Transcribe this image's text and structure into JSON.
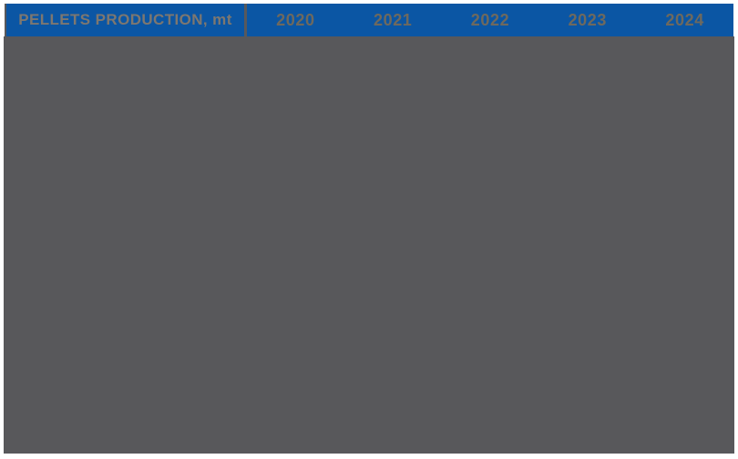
{
  "table": {
    "header": {
      "title": "PELLETS PRODUCTION, mt",
      "years": [
        "2020",
        "2021",
        "2022",
        "2023",
        "2024"
      ]
    }
  },
  "colors": {
    "header_bg": "#0b56a4",
    "body_overlay": "#58585b",
    "title_text": "#7d7770",
    "year_text": "#6e695e",
    "page_bg": "#ffffff"
  },
  "chart_data": {
    "type": "table",
    "title": "PELLETS PRODUCTION, mt",
    "columns": [
      "2020",
      "2021",
      "2022",
      "2023",
      "2024"
    ],
    "rows": [],
    "layout": {
      "header_position": "top",
      "body_visible": false
    }
  }
}
